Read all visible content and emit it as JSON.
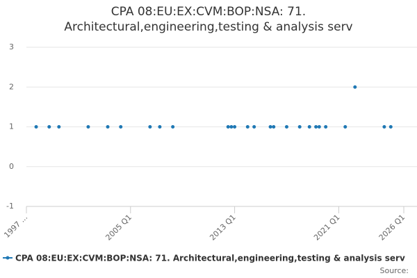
{
  "chart_data": {
    "type": "scatter",
    "title": "CPA 08:EU:EX:CVM:BOP:NSA: 71. Architectural,engineering,testing & analysis serv",
    "series": [
      {
        "name": "CPA 08:EU:EX:CVM:BOP:NSA: 71. Architectural,engineering,testing & analysis serv",
        "color": "#1f78b4",
        "x": [
          "1997 Q4",
          "1998 Q4",
          "1999 Q3",
          "2001 Q4",
          "2003 Q2",
          "2004 Q2",
          "2006 Q3",
          "2007 Q2",
          "2008 Q2",
          "2012 Q3",
          "2012 Q4",
          "2013 Q1",
          "2014 Q1",
          "2014 Q3",
          "2015 Q4",
          "2016 Q1",
          "2017 Q1",
          "2018 Q1",
          "2018 Q4",
          "2019 Q2",
          "2019 Q3",
          "2020 Q1",
          "2021 Q3",
          "2022 Q2",
          "2024 Q3",
          "2025 Q1"
        ],
        "values": [
          1,
          1,
          1,
          1,
          1,
          1,
          1,
          1,
          1,
          1,
          1,
          1,
          1,
          1,
          1,
          1,
          1,
          1,
          1,
          1,
          1,
          1,
          1,
          2,
          1,
          1
        ]
      }
    ],
    "xlim": [
      "1997 Q1",
      "2026 Q1"
    ],
    "xticks": [
      {
        "value": "1997 Q1",
        "label": "1997 ..."
      },
      "2005 Q1",
      "2013 Q1",
      "2021 Q1",
      "2026 Q1"
    ],
    "ylim": [
      -1,
      3
    ],
    "yticks": [
      -1,
      0,
      1,
      2,
      3
    ],
    "grid": true,
    "legend": "bottom",
    "source_label": "Source:"
  }
}
